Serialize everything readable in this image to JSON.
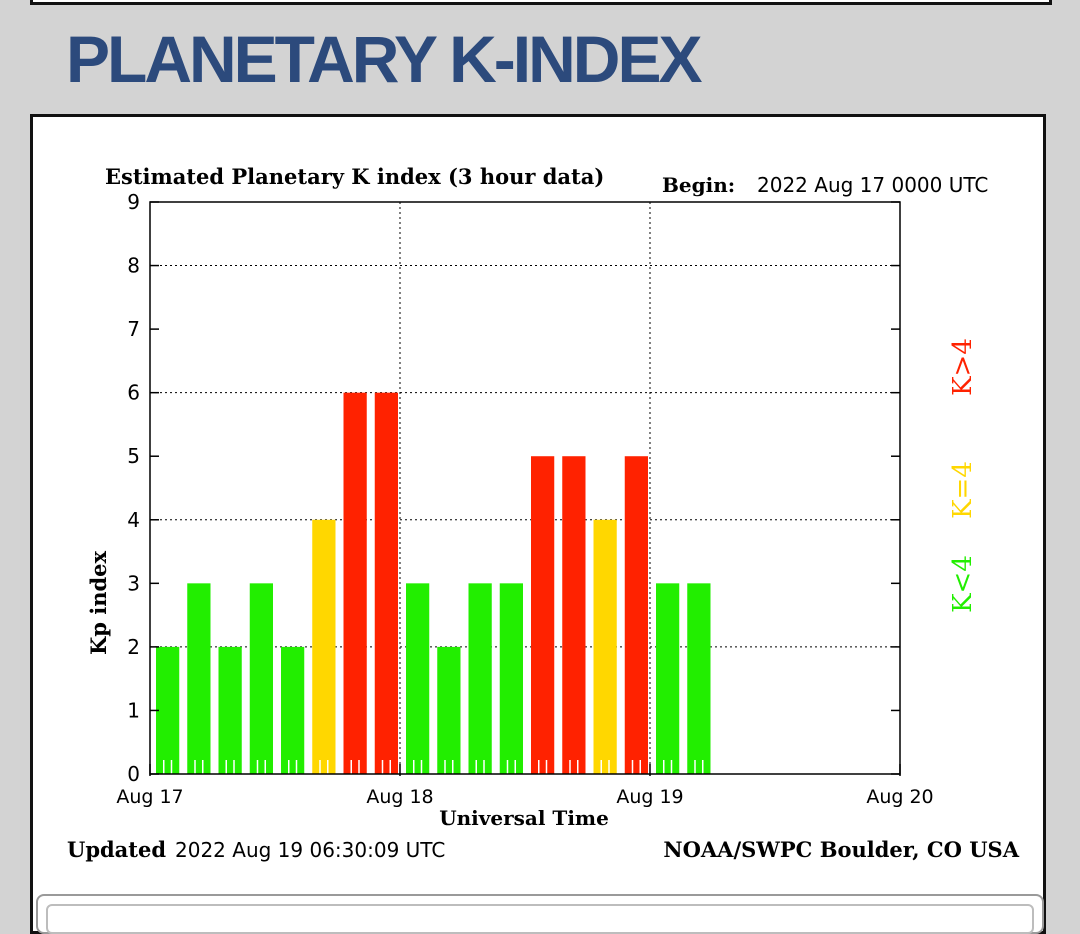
{
  "page": {
    "title": "PLANETARY K-INDEX"
  },
  "chart_data": {
    "type": "bar",
    "title": "Estimated Planetary K index (3 hour data)",
    "begin_label": "Begin:",
    "begin_value": "2022 Aug 17 0000 UTC",
    "xlabel": "Universal Time",
    "ylabel": "Kp index",
    "ylim": [
      0,
      9
    ],
    "yticks": [
      "0",
      "1",
      "2",
      "3",
      "4",
      "5",
      "6",
      "7",
      "8",
      "9"
    ],
    "xticks": [
      "Aug 17",
      "Aug 18",
      "Aug 19",
      "Aug 20"
    ],
    "values": [
      2,
      3,
      2,
      3,
      2,
      4,
      6,
      6,
      3,
      2,
      3,
      3,
      5,
      5,
      4,
      5,
      3,
      3
    ],
    "slots_total": 24,
    "grid": true,
    "legend": [
      {
        "label": "K>4",
        "color": "#ff2200"
      },
      {
        "label": "K=4",
        "color": "#ffd700"
      },
      {
        "label": "K<4",
        "color": "#22ee00"
      }
    ],
    "colors": {
      "low": "#22ee00",
      "equal": "#ffd700",
      "high": "#ff2200"
    },
    "updated_label": "Updated",
    "updated_value": "2022 Aug 19 06:30:09 UTC",
    "credit": "NOAA/SWPC Boulder, CO USA"
  }
}
